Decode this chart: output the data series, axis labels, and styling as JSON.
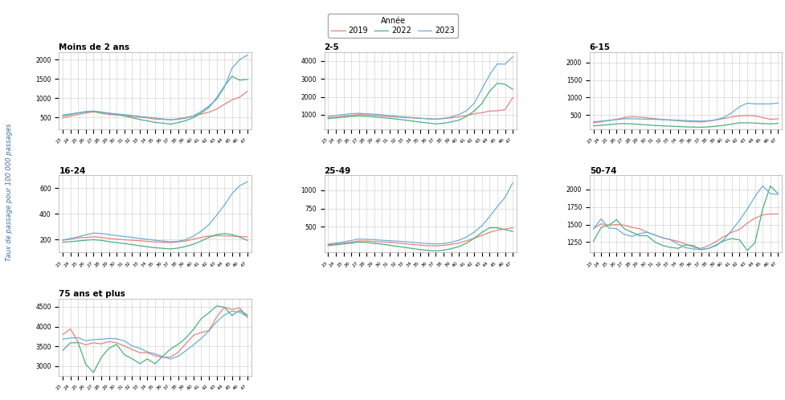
{
  "weeks": [
    23,
    24,
    25,
    26,
    27,
    28,
    29,
    30,
    31,
    32,
    33,
    34,
    35,
    36,
    37,
    38,
    39,
    40,
    41,
    42,
    43,
    44,
    45,
    46,
    47
  ],
  "colors": {
    "2019": "#E8837A",
    "2022": "#4CAF82",
    "2023": "#6AAED6"
  },
  "legend_title": "Année",
  "ylabel": "Taux de passage pour 100 000 passages",
  "panels": [
    {
      "title": "Moins de 2 ans",
      "ylim": [
        200,
        2200
      ],
      "yticks": [
        500,
        1000,
        1500,
        2000
      ],
      "data": {
        "2019": [
          490,
          540,
          580,
          620,
          650,
          610,
          580,
          570,
          555,
          530,
          510,
          490,
          460,
          455,
          440,
          470,
          505,
          540,
          590,
          640,
          720,
          840,
          960,
          1030,
          1180
        ],
        "2022": [
          540,
          580,
          620,
          650,
          660,
          635,
          610,
          575,
          545,
          495,
          450,
          415,
          375,
          355,
          330,
          370,
          420,
          500,
          620,
          760,
          1010,
          1310,
          1570,
          1470,
          1490
        ],
        "2023": [
          565,
          595,
          625,
          655,
          670,
          645,
          615,
          595,
          575,
          555,
          530,
          510,
          490,
          465,
          445,
          455,
          485,
          545,
          660,
          800,
          975,
          1280,
          1780,
          2000,
          2120
        ]
      }
    },
    {
      "title": "2-5",
      "ylim": [
        200,
        4500
      ],
      "yticks": [
        1000,
        2000,
        3000,
        4000
      ],
      "data": {
        "2019": [
          840,
          870,
          920,
          970,
          1010,
          1000,
          970,
          940,
          900,
          870,
          845,
          825,
          800,
          775,
          760,
          790,
          835,
          880,
          960,
          1060,
          1110,
          1210,
          1220,
          1290,
          1950
        ],
        "2022": [
          790,
          830,
          870,
          910,
          940,
          915,
          880,
          845,
          805,
          755,
          705,
          650,
          585,
          545,
          490,
          530,
          600,
          700,
          910,
          1220,
          1630,
          2320,
          2760,
          2700,
          2420
        ],
        "2023": [
          920,
          965,
          1010,
          1060,
          1080,
          1060,
          1030,
          995,
          950,
          910,
          875,
          845,
          810,
          780,
          760,
          800,
          880,
          1015,
          1230,
          1640,
          2440,
          3230,
          3840,
          3820,
          4230
        ]
      }
    },
    {
      "title": "6-15",
      "ylim": [
        100,
        2300
      ],
      "yticks": [
        500,
        1000,
        1500,
        2000
      ],
      "data": {
        "2019": [
          280,
          310,
          345,
          380,
          430,
          455,
          445,
          420,
          400,
          375,
          355,
          340,
          320,
          315,
          305,
          330,
          365,
          405,
          450,
          480,
          490,
          480,
          430,
          380,
          395
        ],
        "2022": [
          195,
          210,
          230,
          250,
          260,
          250,
          235,
          220,
          205,
          195,
          185,
          175,
          165,
          160,
          155,
          165,
          185,
          210,
          245,
          280,
          280,
          275,
          260,
          250,
          265
        ],
        "2023": [
          310,
          330,
          350,
          370,
          395,
          395,
          390,
          385,
          380,
          370,
          365,
          355,
          345,
          335,
          330,
          340,
          370,
          440,
          570,
          740,
          840,
          820,
          820,
          820,
          845
        ]
      }
    },
    {
      "title": "16-24",
      "ylim": [
        100,
        700
      ],
      "yticks": [
        200,
        400,
        600
      ],
      "data": {
        "2019": [
          195,
          205,
          215,
          218,
          222,
          218,
          210,
          205,
          200,
          196,
          192,
          187,
          183,
          180,
          177,
          183,
          190,
          205,
          218,
          228,
          232,
          230,
          228,
          225,
          222
        ],
        "2022": [
          180,
          185,
          190,
          196,
          200,
          195,
          185,
          178,
          170,
          162,
          153,
          145,
          138,
          133,
          128,
          135,
          148,
          165,
          190,
          218,
          240,
          248,
          240,
          220,
          195
        ],
        "2023": [
          198,
          210,
          222,
          238,
          252,
          248,
          240,
          232,
          225,
          218,
          210,
          203,
          196,
          190,
          184,
          188,
          200,
          228,
          268,
          318,
          390,
          468,
          558,
          620,
          650
        ]
      }
    },
    {
      "title": "25-49",
      "ylim": [
        150,
        1200
      ],
      "yticks": [
        500,
        750,
        1000
      ],
      "data": {
        "2019": [
          255,
          268,
          278,
          292,
          308,
          308,
          300,
          295,
          290,
          280,
          270,
          260,
          250,
          244,
          240,
          248,
          262,
          280,
          310,
          345,
          385,
          425,
          455,
          470,
          488
        ],
        "2022": [
          245,
          255,
          268,
          278,
          292,
          288,
          275,
          265,
          250,
          235,
          220,
          205,
          190,
          180,
          172,
          182,
          202,
          232,
          278,
          345,
          425,
          488,
          488,
          462,
          438
        ],
        "2023": [
          265,
          280,
          295,
          315,
          335,
          330,
          325,
          318,
          312,
          305,
          298,
          290,
          280,
          272,
          268,
          272,
          290,
          318,
          362,
          428,
          518,
          638,
          778,
          898,
          1098
        ]
      }
    },
    {
      "title": "50-74",
      "ylim": [
        1100,
        2200
      ],
      "yticks": [
        1250,
        1500,
        1750,
        2000
      ],
      "data": {
        "2019": [
          1440,
          1510,
          1490,
          1500,
          1490,
          1460,
          1440,
          1390,
          1350,
          1310,
          1285,
          1260,
          1220,
          1175,
          1160,
          1200,
          1260,
          1330,
          1390,
          1430,
          1520,
          1590,
          1640,
          1650,
          1650
        ],
        "2022": [
          1260,
          1460,
          1490,
          1570,
          1440,
          1390,
          1340,
          1340,
          1250,
          1200,
          1175,
          1160,
          1210,
          1200,
          1140,
          1160,
          1210,
          1270,
          1300,
          1280,
          1130,
          1240,
          1720,
          2050,
          1940
        ],
        "2023": [
          1440,
          1580,
          1450,
          1440,
          1360,
          1330,
          1370,
          1390,
          1350,
          1310,
          1285,
          1220,
          1170,
          1150,
          1145,
          1160,
          1200,
          1290,
          1420,
          1560,
          1720,
          1900,
          2050,
          1940,
          1930
        ]
      }
    },
    {
      "title": "75 ans et plus",
      "ylim": [
        2750,
        4700
      ],
      "yticks": [
        3000,
        3500,
        4000,
        4500
      ],
      "data": {
        "2019": [
          3800,
          3940,
          3600,
          3540,
          3590,
          3560,
          3620,
          3590,
          3510,
          3420,
          3340,
          3340,
          3260,
          3220,
          3230,
          3350,
          3570,
          3780,
          3850,
          3900,
          4240,
          4490,
          4430,
          4470,
          4230
        ],
        "2022": [
          3400,
          3590,
          3590,
          3040,
          2840,
          3220,
          3450,
          3550,
          3290,
          3190,
          3060,
          3180,
          3060,
          3250,
          3430,
          3550,
          3710,
          3930,
          4200,
          4350,
          4520,
          4490,
          4280,
          4410,
          4290
        ],
        "2023": [
          3680,
          3710,
          3720,
          3640,
          3670,
          3680,
          3700,
          3690,
          3640,
          3510,
          3450,
          3360,
          3310,
          3240,
          3180,
          3250,
          3390,
          3540,
          3700,
          3890,
          4120,
          4290,
          4390,
          4360,
          4250
        ]
      }
    }
  ]
}
